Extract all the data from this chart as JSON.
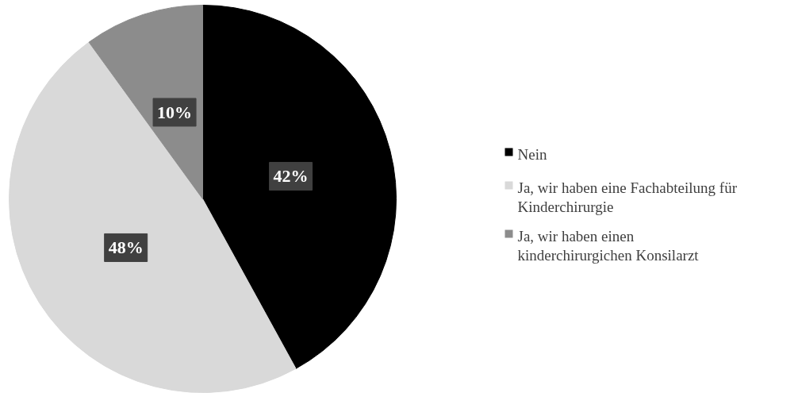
{
  "chart_data": {
    "type": "pie",
    "categories": [
      "Nein",
      "Ja, wir haben eine Fachabteilung für Kinderchirurgie",
      "Ja, wir haben einen kinderchirurgichen Konsilarzt"
    ],
    "values": [
      42,
      48,
      10
    ],
    "colors": [
      "#000000",
      "#d9d9d9",
      "#8c8c8c"
    ],
    "value_labels": [
      "42%",
      "48%",
      "10%"
    ],
    "legend": "right"
  }
}
